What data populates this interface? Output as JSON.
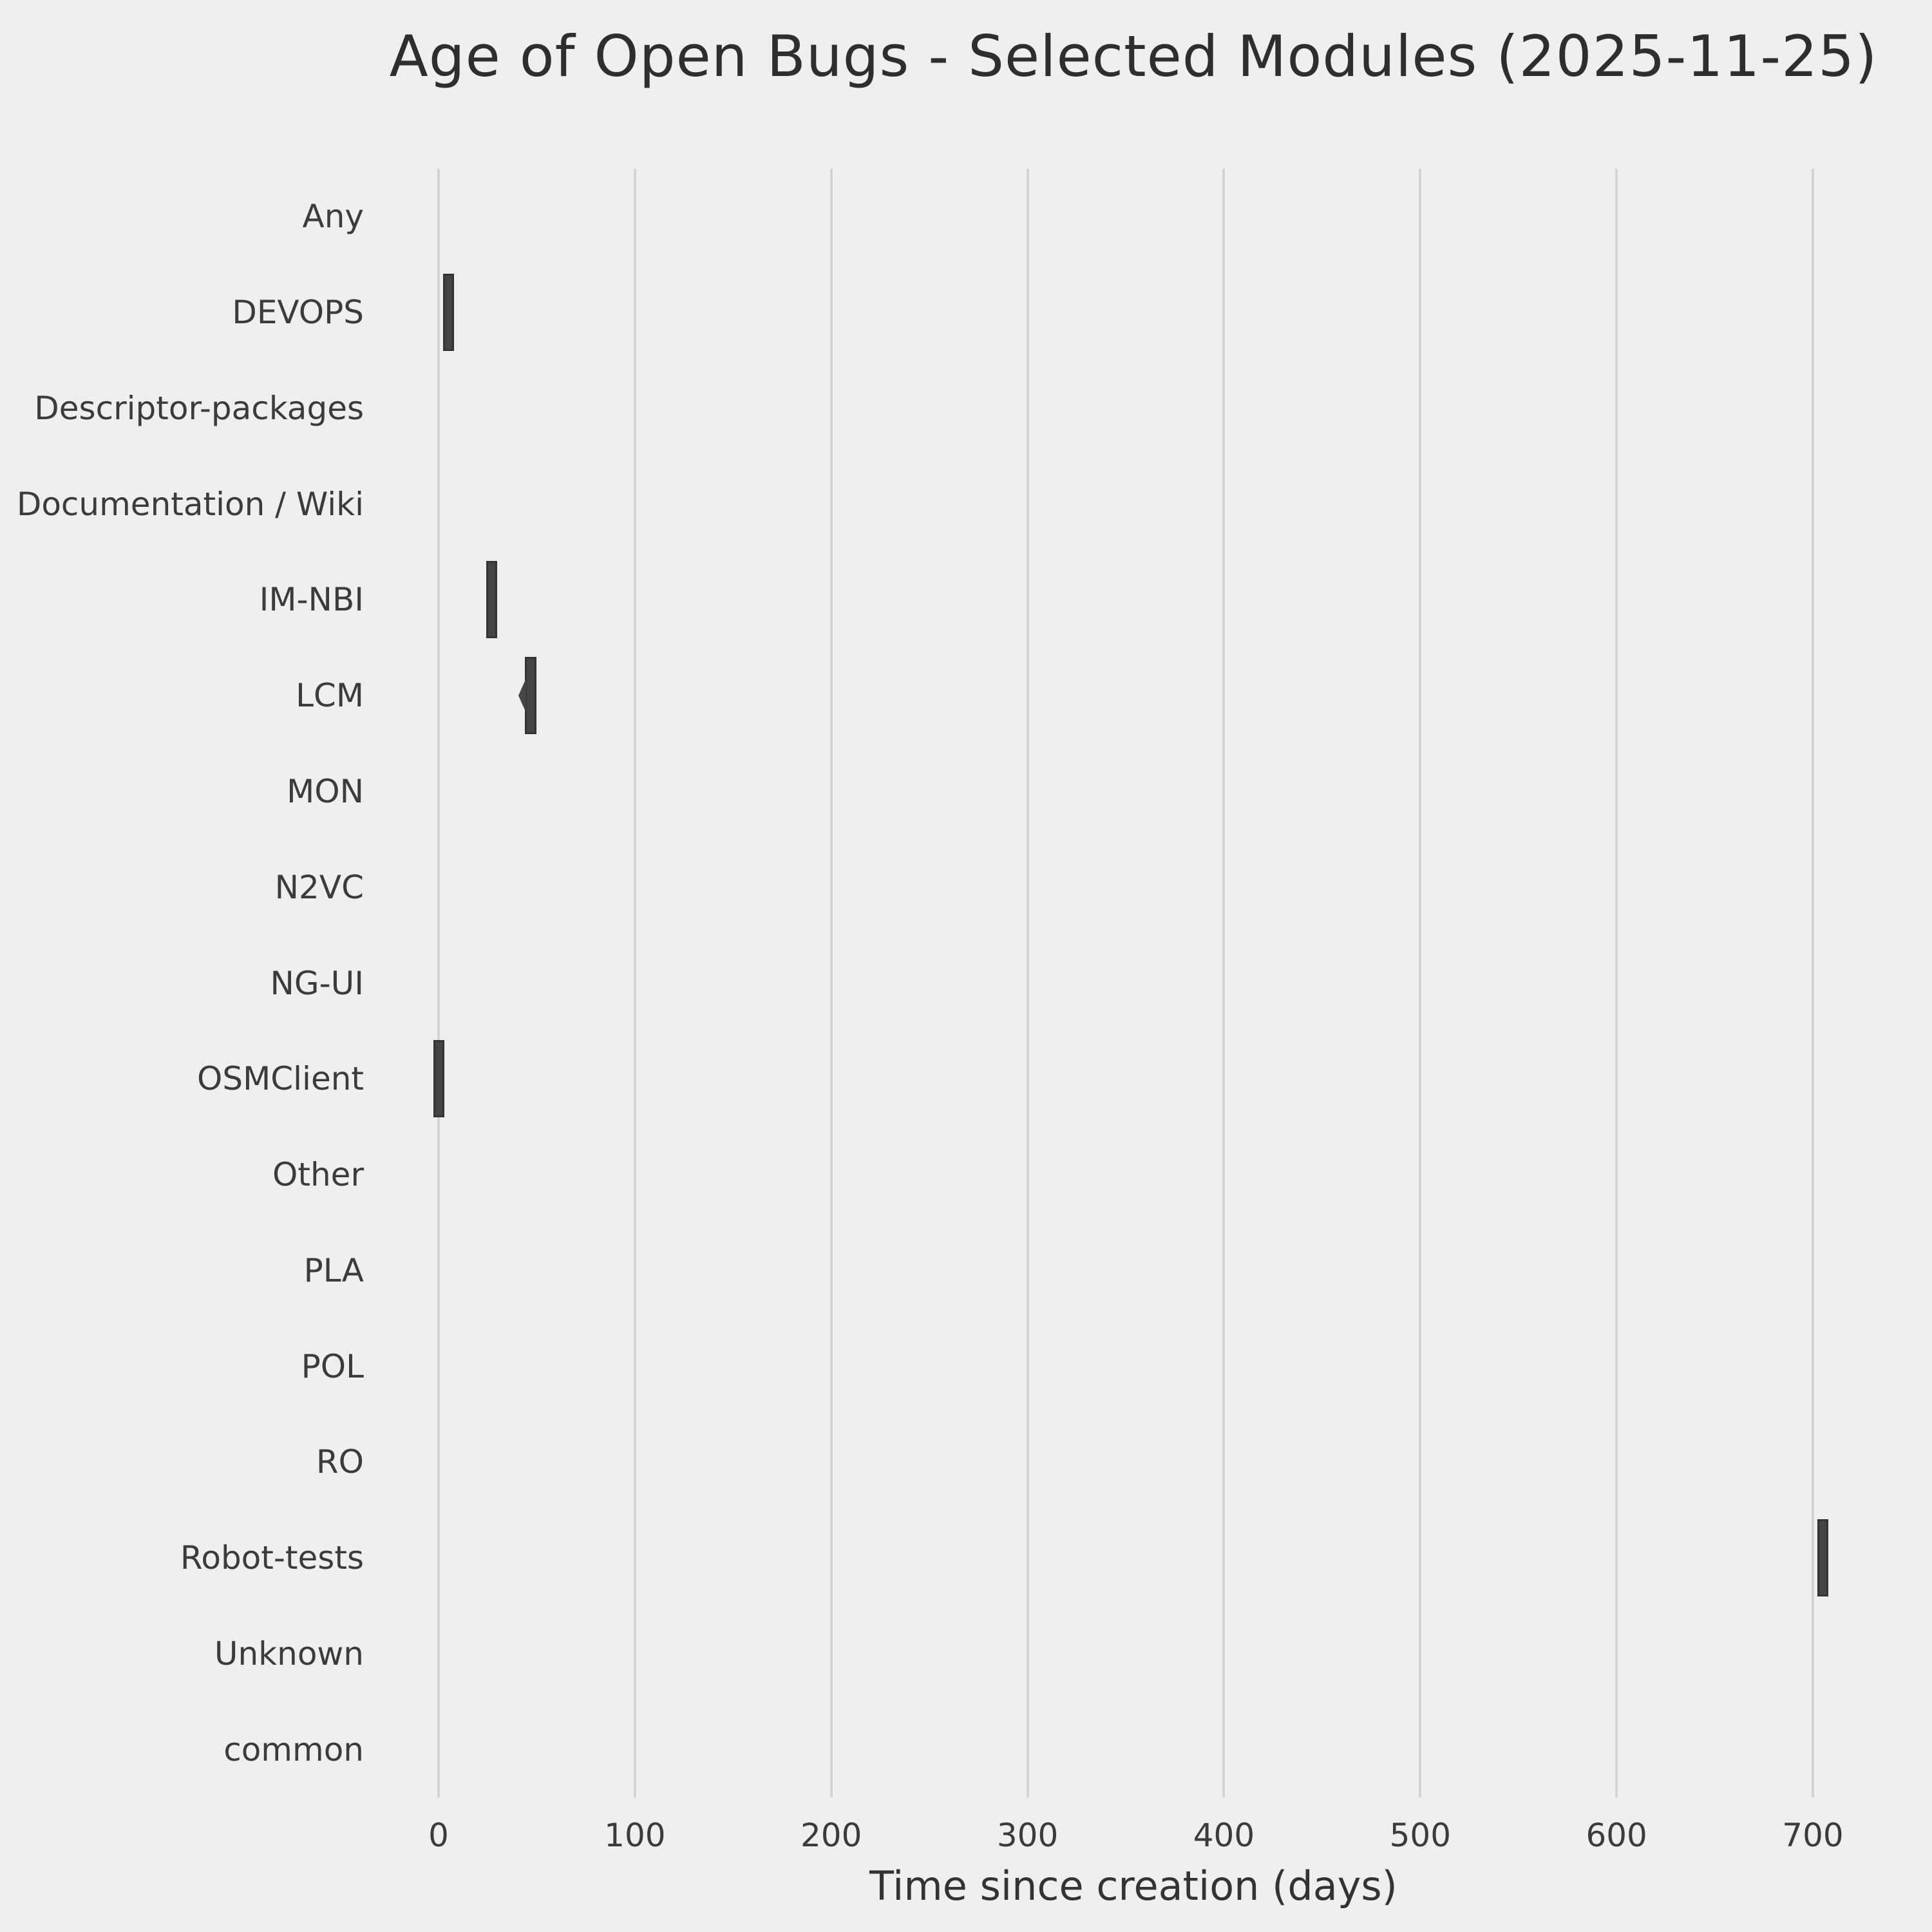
{
  "figure": {
    "background_color": "#efefef"
  },
  "chart_data": {
    "type": "boxplot",
    "orientation": "horizontal",
    "title": "Age of Open Bugs - Selected Modules (2025-11-25)",
    "xlabel": "Time since creation (days)",
    "ylabel": "",
    "x_ticks": [
      0,
      100,
      200,
      300,
      400,
      500,
      600,
      700
    ],
    "xlim": [
      -35.4,
      743.2
    ],
    "grid": "vertical-only",
    "legend": "none",
    "categories": [
      "Any",
      "DEVOPS",
      "Descriptor-packages",
      "Documentation / Wiki",
      "IM-NBI",
      "LCM",
      "MON",
      "N2VC",
      "NG-UI",
      "OSMClient",
      "Other",
      "PLA",
      "POL",
      "RO",
      "Robot-tests",
      "Unknown",
      "common"
    ],
    "boxes": [
      {
        "category": "Any",
        "box": null
      },
      {
        "category": "DEVOPS",
        "box": {
          "q1": 2.3,
          "q3": 8.0
        }
      },
      {
        "category": "Descriptor-packages",
        "box": null
      },
      {
        "category": "Documentation / Wiki",
        "box": null
      },
      {
        "category": "IM-NBI",
        "box": {
          "q1": 24.3,
          "q3": 29.9
        }
      },
      {
        "category": "LCM",
        "box": {
          "q1": 44.0,
          "q3": 49.8,
          "notch_min": 40.7
        }
      },
      {
        "category": "MON",
        "box": null
      },
      {
        "category": "N2VC",
        "box": null
      },
      {
        "category": "NG-UI",
        "box": null
      },
      {
        "category": "OSMClient",
        "box": {
          "q1": -2.5,
          "q3": 3.0
        }
      },
      {
        "category": "Other",
        "box": null
      },
      {
        "category": "PLA",
        "box": null
      },
      {
        "category": "POL",
        "box": null
      },
      {
        "category": "RO",
        "box": null
      },
      {
        "category": "Robot-tests",
        "box": {
          "q1": 702.3,
          "q3": 707.8
        }
      },
      {
        "category": "Unknown",
        "box": null
      },
      {
        "category": "common",
        "box": null
      }
    ],
    "colors": {
      "background": "#efefef",
      "grid": "#d3d3d3",
      "box_fill": "#454545",
      "box_edge": "#343434",
      "text": "#3b3b3b",
      "title_text": "#2e2e2e"
    }
  }
}
